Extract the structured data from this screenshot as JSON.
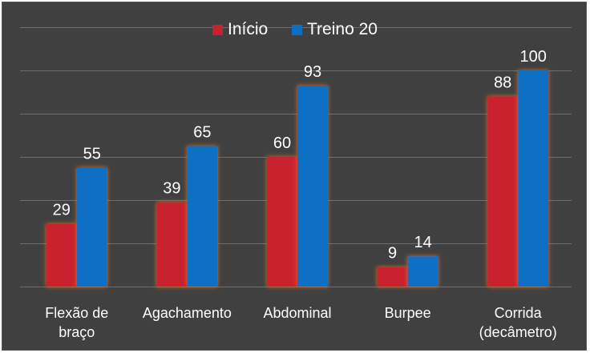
{
  "chart_data": {
    "type": "bar",
    "title": "",
    "categories": [
      [
        "Flexão de",
        "braço"
      ],
      [
        "Agachamento"
      ],
      [
        "Abdominal"
      ],
      [
        "Burpee"
      ],
      [
        "Corrida",
        "(decâmetro)"
      ]
    ],
    "series": [
      {
        "name": "Início",
        "values": [
          29,
          39,
          60,
          9,
          88
        ],
        "color": "#c9212d"
      },
      {
        "name": "Treino 20",
        "values": [
          55,
          65,
          93,
          14,
          100
        ],
        "color": "#0b6fc4"
      }
    ],
    "ylim": [
      0,
      120
    ],
    "grid": true,
    "grid_step": 20,
    "legend_position": "top-center",
    "data_labels": true,
    "background": "#404040",
    "glow_color": "#e07020"
  }
}
